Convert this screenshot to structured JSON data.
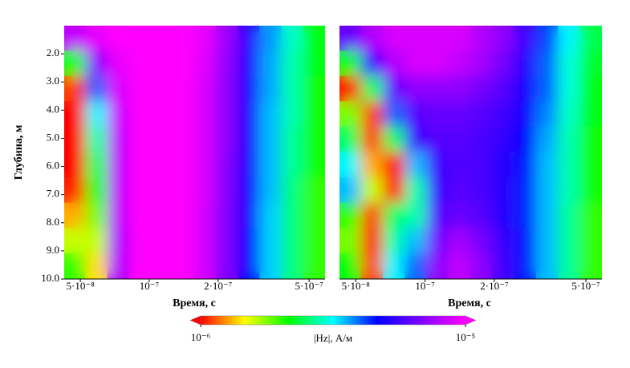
{
  "chart_data": {
    "type": "heatmap",
    "xlabel": "Время, с",
    "ylabel": "Глубина, м",
    "log_x": true,
    "xlim": [
      4.25e-08,
      5.87e-07
    ],
    "xticks": [
      {
        "value": 5e-08,
        "label": "5·10⁻⁸"
      },
      {
        "value": 1e-07,
        "label": "10⁻⁷"
      },
      {
        "value": 2e-07,
        "label": "2·10⁻⁷"
      },
      {
        "value": 5e-07,
        "label": "5·10⁻⁷"
      }
    ],
    "ylim": [
      10,
      1
    ],
    "yticks": [
      {
        "value": 2,
        "label": "2.0"
      },
      {
        "value": 3,
        "label": "3.0"
      },
      {
        "value": 4,
        "label": "4.0"
      },
      {
        "value": 5,
        "label": "5.0"
      },
      {
        "value": 6,
        "label": "6.0"
      },
      {
        "value": 7,
        "label": "7.0"
      },
      {
        "value": 8,
        "label": "8.0"
      },
      {
        "value": 9,
        "label": "9.0"
      },
      {
        "value": 10,
        "label": "10.0"
      }
    ],
    "x": [
      4.74e-08,
      5.9e-08,
      7.34e-08,
      9.14e-08,
      1.14e-07,
      1.42e-07,
      1.76e-07,
      2.19e-07,
      2.73e-07,
      3.4e-07,
      4.23e-07,
      5.26e-07
    ],
    "y": [
      1.45,
      2.35,
      3.25,
      4.15,
      5.05,
      5.95,
      6.85,
      7.75,
      8.65,
      9.55
    ],
    "panels": [
      {
        "values": [
          [
            8.3e-06,
            9.3e-06,
            1e-05,
            1e-05,
            1e-05,
            1e-05,
            9.3e-06,
            7.4e-06,
            5.2e-06,
            3.7e-06,
            2.9e-06,
            2.2e-06
          ],
          [
            2.2e-06,
            7.1e-06,
            9.3e-06,
            1e-05,
            1e-05,
            1e-05,
            9.1e-06,
            7.2e-06,
            5.1e-06,
            3.6e-06,
            2.8e-06,
            2.2e-06
          ],
          [
            1.1e-06,
            4e-06,
            8.9e-06,
            1e-05,
            1e-05,
            1e-05,
            8.9e-06,
            7.1e-06,
            5e-06,
            3.6e-06,
            2.8e-06,
            2.1e-06
          ],
          [
            1e-06,
            3.2e-06,
            8.5e-06,
            1e-05,
            1e-05,
            1e-05,
            8.9e-06,
            7.1e-06,
            5e-06,
            3.5e-06,
            2.8e-06,
            2.1e-06
          ],
          [
            1e-06,
            2.8e-06,
            8.3e-06,
            1e-05,
            1e-05,
            1e-05,
            8.9e-06,
            7.1e-06,
            4.9e-06,
            3.5e-06,
            2.7e-06,
            2.1e-06
          ],
          [
            1e-06,
            2.5e-06,
            8.3e-06,
            1e-05,
            1e-05,
            1e-05,
            8.9e-06,
            6.9e-06,
            4.9e-06,
            3.5e-06,
            2.7e-06,
            2.1e-06
          ],
          [
            1.05e-06,
            2.2e-06,
            8.3e-06,
            1e-05,
            1e-05,
            1e-05,
            8.9e-06,
            6.9e-06,
            4.8e-06,
            3.5e-06,
            2.6e-06,
            2e-06
          ],
          [
            1.3e-06,
            1.8e-06,
            8.3e-06,
            1e-05,
            1e-05,
            1e-05,
            8.7e-06,
            6.8e-06,
            4.8e-06,
            3.4e-06,
            2.6e-06,
            2e-06
          ],
          [
            1.6e-06,
            1.6e-06,
            7.9e-06,
            1e-05,
            1e-05,
            1e-05,
            8.7e-06,
            6.8e-06,
            4.7e-06,
            3.4e-06,
            2.6e-06,
            2e-06
          ],
          [
            2e-06,
            1.4e-06,
            7.9e-06,
            1e-05,
            1e-05,
            1e-05,
            8.7e-06,
            6.8e-06,
            4.7e-06,
            3.4e-06,
            2.6e-06,
            2e-06
          ]
        ]
      },
      {
        "values": [
          [
            6.3e-06,
            7.9e-06,
            8.9e-06,
            8.9e-06,
            8.9e-06,
            8.9e-06,
            7.9e-06,
            7.1e-06,
            5.6e-06,
            4.2e-06,
            3.2e-06,
            2.4e-06
          ],
          [
            2.2e-06,
            5.6e-06,
            7.9e-06,
            8.9e-06,
            8.9e-06,
            8.3e-06,
            7.6e-06,
            6.6e-06,
            5.2e-06,
            4e-06,
            3e-06,
            2.3e-06
          ],
          [
            1e-06,
            2.5e-06,
            6.3e-06,
            7.1e-06,
            7.1e-06,
            7.1e-06,
            6.6e-06,
            6e-06,
            5e-06,
            4e-06,
            3e-06,
            2.2e-06
          ],
          [
            1.8e-06,
            1.1e-06,
            4e-06,
            6e-06,
            6.3e-06,
            6.3e-06,
            6e-06,
            5.6e-06,
            4.8e-06,
            3.8e-06,
            2.9e-06,
            2.2e-06
          ],
          [
            2.5e-06,
            1.1e-06,
            2.5e-06,
            5.6e-06,
            6e-06,
            6e-06,
            5.8e-06,
            5.4e-06,
            4.6e-06,
            3.6e-06,
            2.8e-06,
            2.1e-06
          ],
          [
            3.2e-06,
            1.3e-06,
            1e-06,
            3.5e-06,
            5.6e-06,
            5.9e-06,
            5.8e-06,
            5.2e-06,
            4.5e-06,
            3.5e-06,
            2.8e-06,
            2.1e-06
          ],
          [
            3.5e-06,
            1.6e-06,
            1e-06,
            2.8e-06,
            5.6e-06,
            6e-06,
            5.8e-06,
            5.2e-06,
            4.4e-06,
            3.5e-06,
            2.8e-06,
            2.1e-06
          ],
          [
            2e-06,
            1.1e-06,
            2.5e-06,
            2.8e-06,
            6e-06,
            6.3e-06,
            6e-06,
            5.2e-06,
            4.4e-06,
            3.5e-06,
            2.7e-06,
            2e-06
          ],
          [
            1.8e-06,
            1e-06,
            2.8e-06,
            3.5e-06,
            6.6e-06,
            7.6e-06,
            6.6e-06,
            5.5e-06,
            4.5e-06,
            3.5e-06,
            2.7e-06,
            2e-06
          ],
          [
            2.2e-06,
            1.1e-06,
            3.2e-06,
            4e-06,
            7.1e-06,
            8.3e-06,
            7.1e-06,
            5.6e-06,
            4.5e-06,
            3.5e-06,
            2.7e-06,
            2e-06
          ]
        ]
      }
    ],
    "colorbar": {
      "label": "|Hz|, А/м",
      "log": true,
      "lim": [
        1e-06,
        1e-05
      ],
      "ticks": [
        {
          "value": 1e-06,
          "label": "10⁻⁶"
        },
        {
          "value": 1e-05,
          "label": "10⁻⁵"
        }
      ],
      "colormap": [
        "#ff0000",
        "#ffff00",
        "#00ff00",
        "#00ffff",
        "#0000ff",
        "#8000ff",
        "#ff00ff"
      ]
    }
  }
}
